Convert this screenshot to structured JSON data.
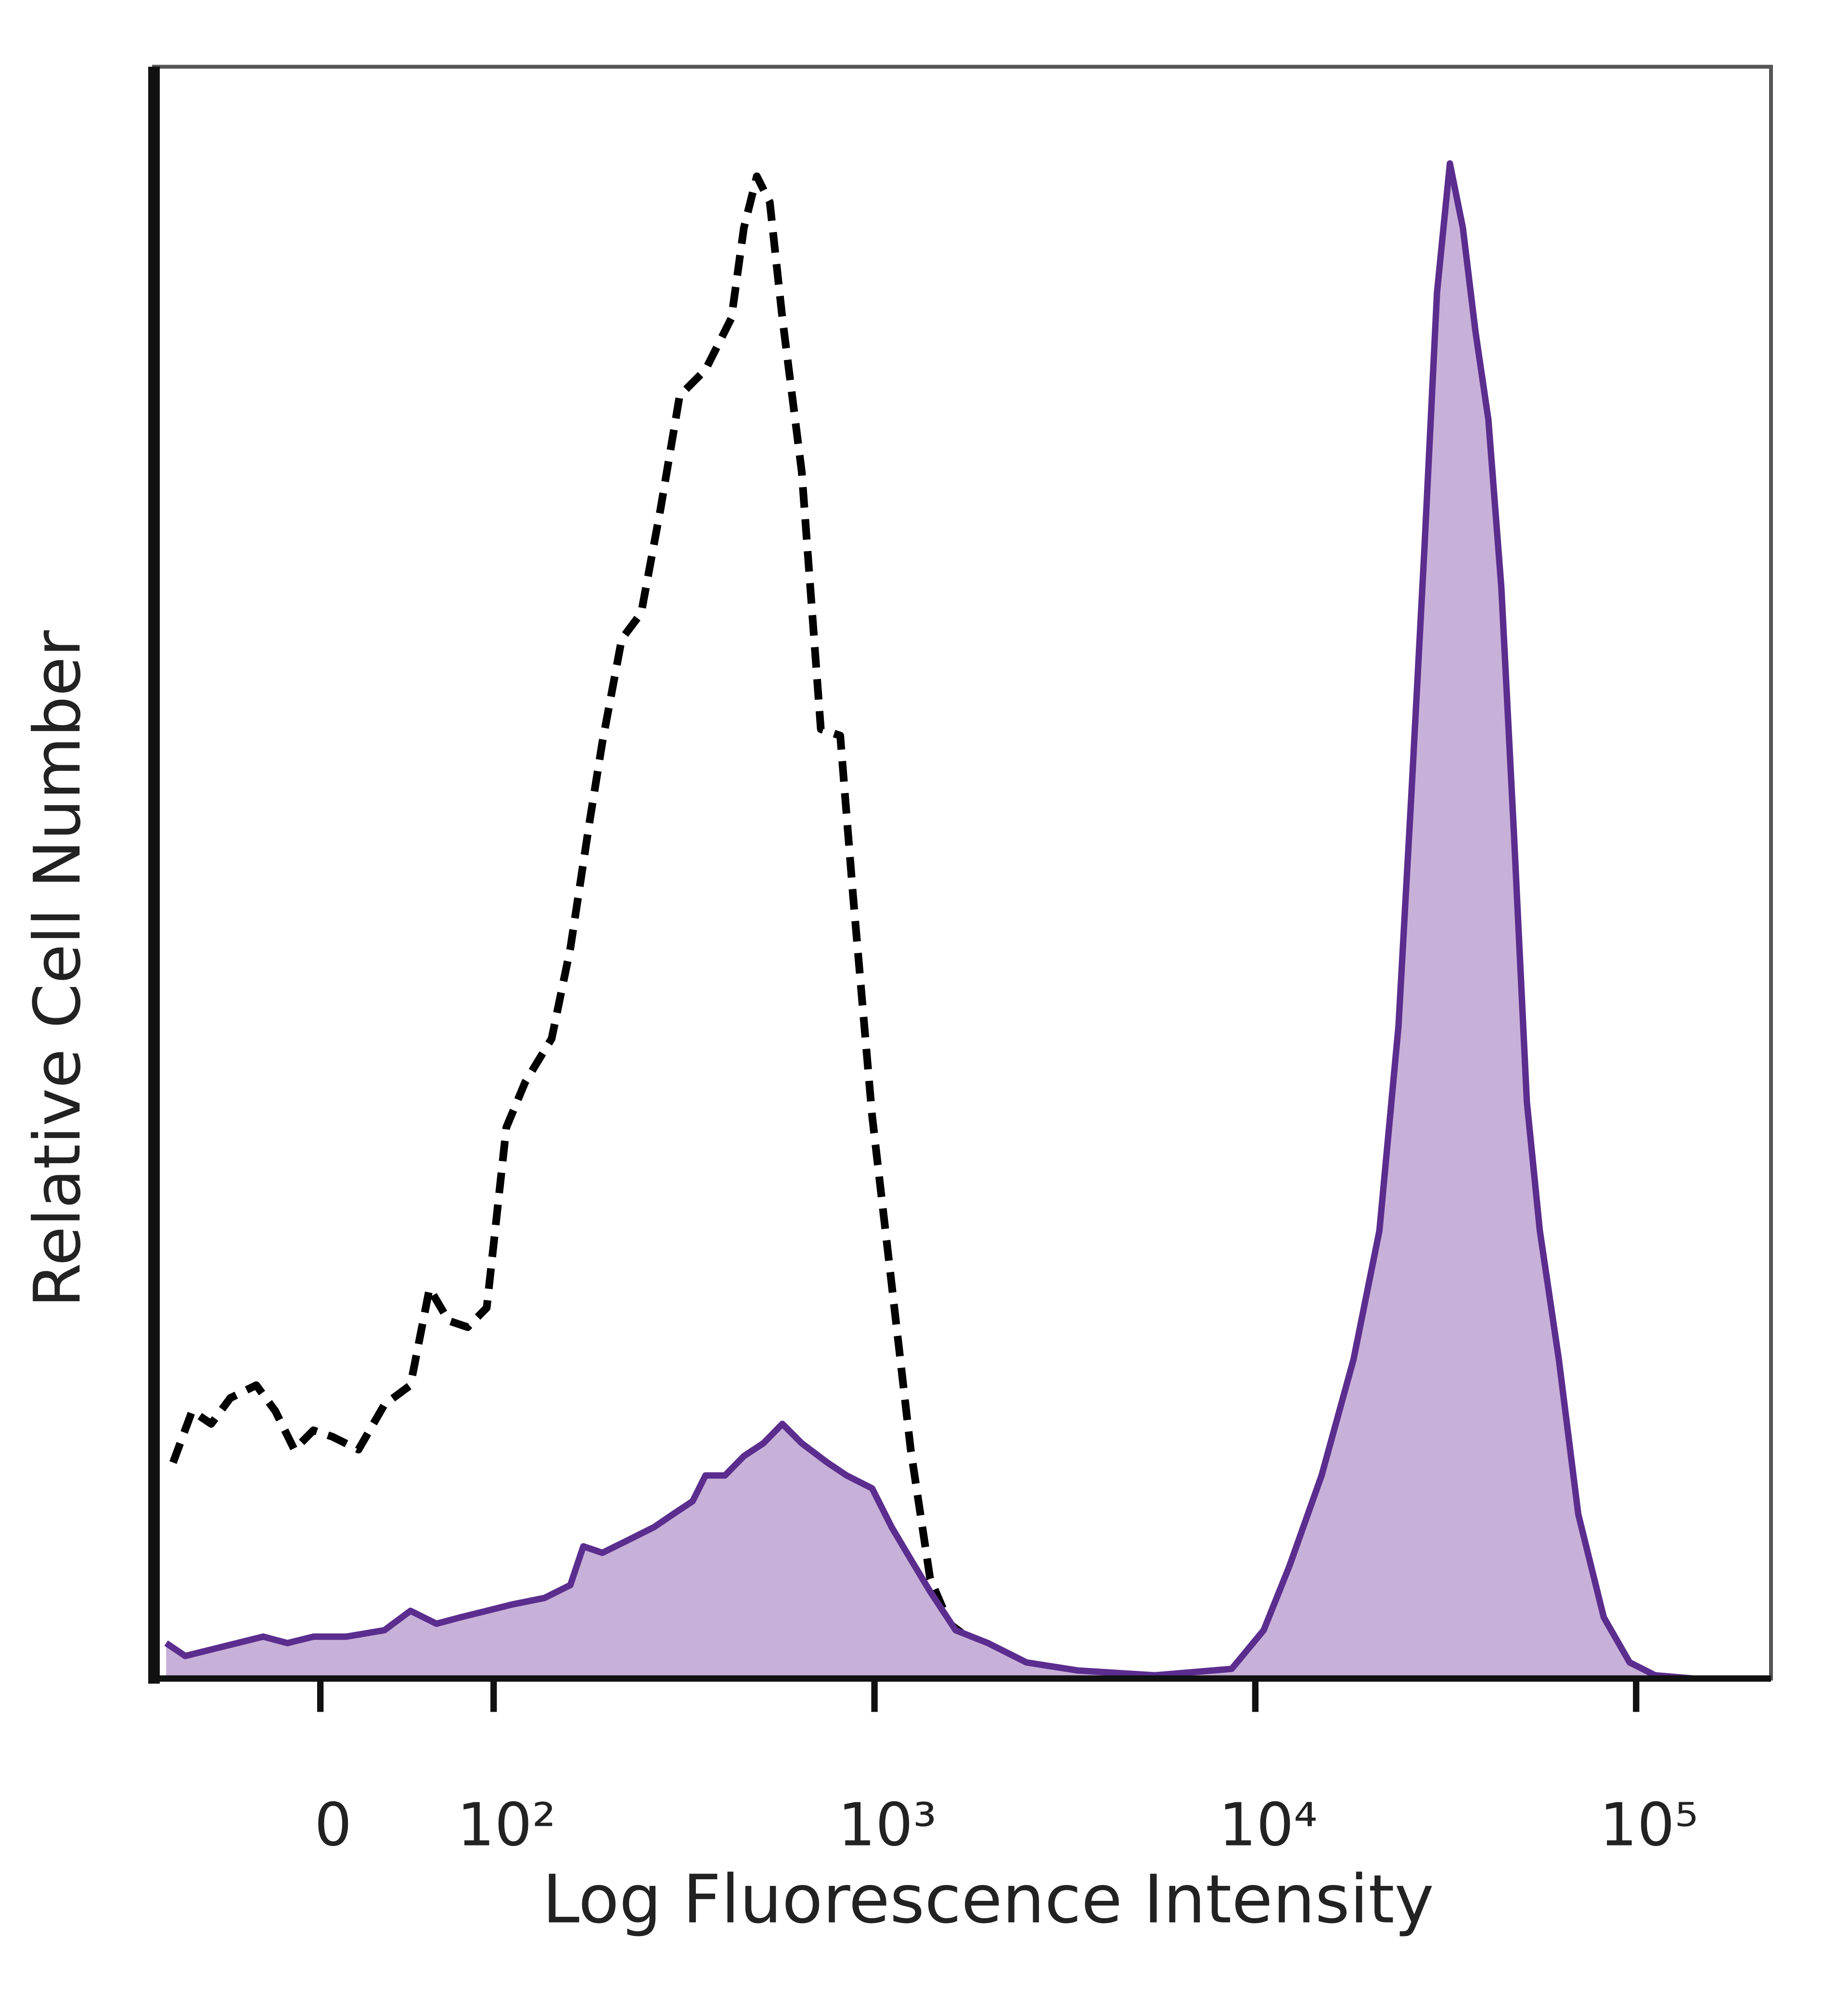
{
  "chart_data": {
    "type": "histogram-overlay",
    "xlabel": "Log Fluorescence Intensity",
    "ylabel": "Relative Cell Number",
    "xscale": "biexponential",
    "xlim": [
      -96,
      226000
    ],
    "xticks": [
      0,
      {
        "value": 100,
        "label": "10²"
      },
      {
        "value": 1000,
        "label": "10³"
      },
      {
        "value": 10000,
        "label": "10⁴"
      },
      {
        "value": 100000,
        "label": "10⁵"
      }
    ],
    "ylim": [
      0,
      100
    ],
    "series": [
      {
        "color": "#000000",
        "dashed": true,
        "fill": null,
        "x": [
          -85,
          -74,
          -63,
          -52,
          -37,
          -26,
          -15,
          -4,
          7,
          22,
          37,
          52,
          63,
          74,
          85,
          96,
          108,
          121,
          142,
          159,
          179,
          193,
          217,
          244,
          274,
          308,
          360,
          421,
          454,
          491,
          531,
          573,
          644,
          723,
          813,
          879,
          986,
          1109,
          1245,
          1400,
          1574,
          1837,
          2143,
          2506,
          2924
        ],
        "values": [
          13.4,
          16.6,
          15.8,
          17.4,
          18.2,
          16.6,
          14.2,
          15.4,
          15.0,
          14.2,
          17.0,
          18.2,
          24.2,
          22.2,
          21.8,
          23.0,
          34.2,
          37.0,
          39.7,
          45.3,
          53.3,
          58.1,
          64.5,
          66.1,
          72.5,
          79.6,
          81.2,
          84.4,
          90.0,
          93.2,
          91.6,
          84.4,
          74.9,
          58.9,
          58.5,
          48.5,
          34.9,
          24.5,
          14.2,
          6.2,
          3.4,
          2.2,
          1.0,
          0.2,
          0
        ]
      },
      {
        "color": "#5b2d8e",
        "dashed": false,
        "fill": "#c8b1d8",
        "x": [
          -89,
          -78,
          -63,
          -48,
          -33,
          -19,
          -4,
          15,
          37,
          52,
          67,
          81,
          96,
          112,
          136,
          159,
          172,
          193,
          226,
          264,
          296,
          333,
          360,
          405,
          454,
          511,
          573,
          644,
          752,
          845,
          986,
          1109,
          1245,
          1400,
          1633,
          1986,
          2506,
          3420,
          5445,
          8670,
          10520,
          12300,
          14930,
          18110,
          21180,
          23770,
          25700,
          27800,
          30000,
          32430,
          35080,
          37840,
          40930,
          44260,
          47750,
          51640,
          55850,
          62660,
          70470,
          82220,
          96150,
          112200,
          141600
        ],
        "values": [
          2.2,
          1.4,
          1.8,
          2.2,
          2.6,
          2.2,
          2.6,
          2.6,
          3.0,
          4.2,
          3.4,
          3.8,
          4.2,
          4.6,
          5.0,
          5.8,
          8.2,
          7.8,
          8.6,
          9.4,
          10.2,
          11.0,
          12.6,
          12.6,
          13.8,
          14.6,
          15.8,
          14.6,
          13.4,
          12.6,
          11.8,
          9.4,
          7.4,
          5.4,
          3.0,
          2.2,
          1.0,
          0.5,
          0.2,
          0.6,
          3.0,
          7.0,
          12.6,
          19.8,
          27.8,
          40.5,
          54.9,
          70.1,
          86.0,
          94.0,
          90.0,
          83.6,
          78.1,
          67.7,
          52.5,
          35.8,
          27.8,
          19.8,
          10.2,
          3.8,
          1.0,
          0.2,
          0
        ]
      }
    ]
  }
}
